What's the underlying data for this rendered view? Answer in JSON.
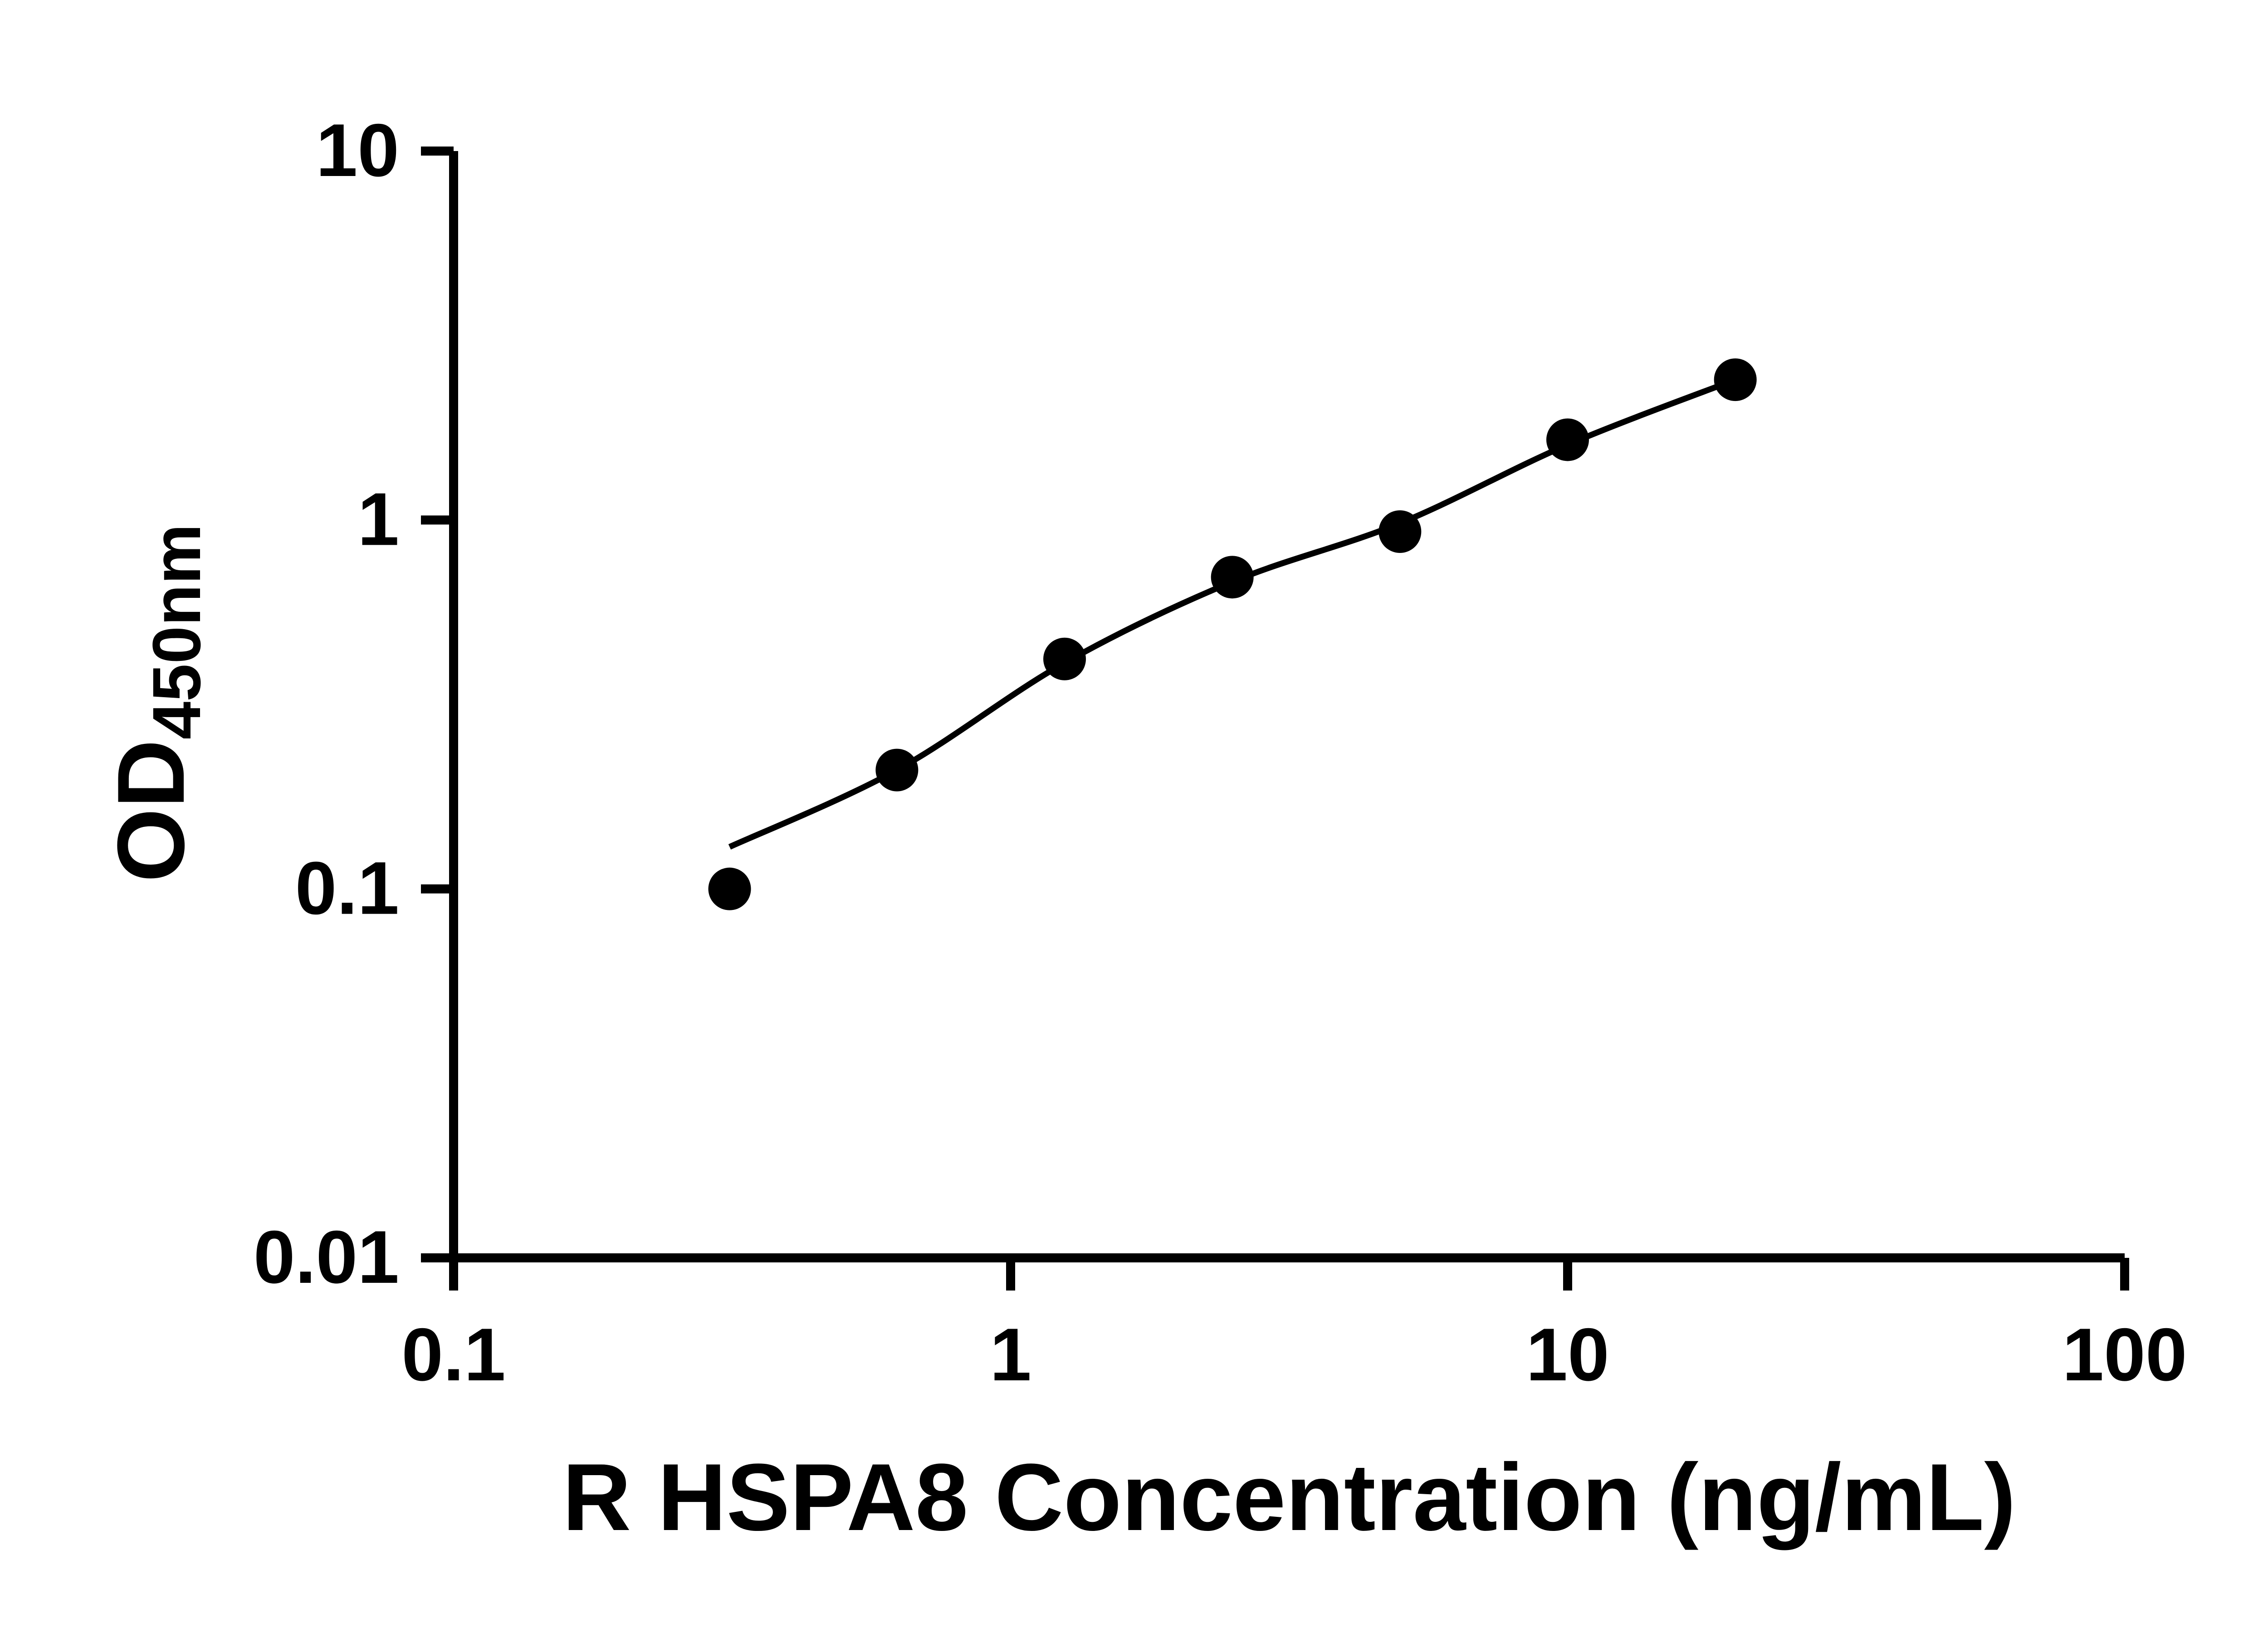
{
  "chart_data": {
    "type": "scatter",
    "title": "",
    "xlabel": "R HSPA8 Concentration (ng/mL)",
    "ylabel_main": "OD",
    "ylabel_sub": "450nm",
    "x_scale": "log",
    "y_scale": "log",
    "xlim": [
      0.1,
      100
    ],
    "ylim": [
      0.01,
      10
    ],
    "x_ticks": [
      0.1,
      1,
      10,
      100
    ],
    "x_tick_labels": [
      "0.1",
      "1",
      "10",
      "100"
    ],
    "y_ticks": [
      0.01,
      0.1,
      1,
      10
    ],
    "y_tick_labels": [
      "0.01",
      "0.1",
      "1",
      "10"
    ],
    "points": {
      "x": [
        0.313,
        0.625,
        1.25,
        2.5,
        5,
        10,
        20
      ],
      "y": [
        0.1,
        0.21,
        0.42,
        0.7,
        0.93,
        1.65,
        2.4
      ]
    },
    "fit_curve": {
      "x": [
        0.313,
        0.625,
        1.25,
        2.5,
        5,
        10,
        20
      ],
      "y": [
        0.13,
        0.21,
        0.41,
        0.68,
        0.98,
        1.6,
        2.4
      ]
    },
    "marker_color": "#000000",
    "line_color": "#000000",
    "axis_color": "#000000",
    "grid": false,
    "legend_position": "none"
  }
}
